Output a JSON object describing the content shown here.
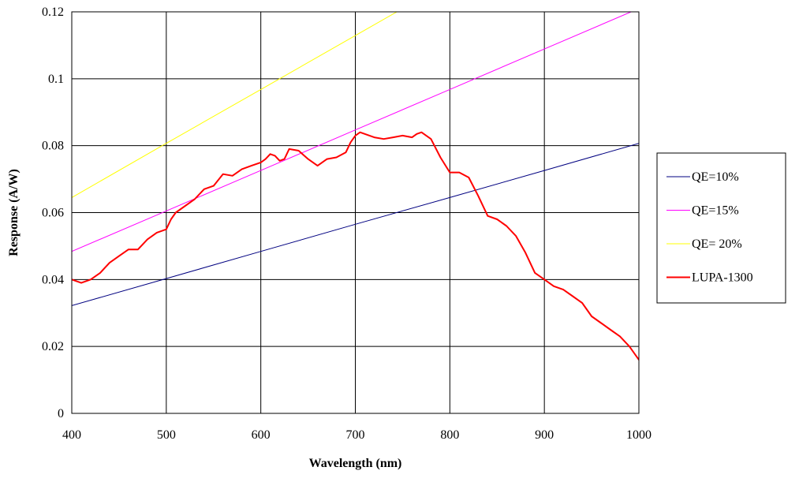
{
  "chart_data": {
    "type": "line",
    "title": "",
    "xlabel": "Wavelength (nm)",
    "ylabel": "Response (A/W)",
    "xlim": [
      400,
      1000
    ],
    "ylim": [
      0,
      0.12
    ],
    "x_ticks": [
      "400",
      "500",
      "600",
      "700",
      "800",
      "900",
      "1000"
    ],
    "y_ticks": [
      "0",
      "0.02",
      "0.04",
      "0.06",
      "0.08",
      "0.1",
      "0.12"
    ],
    "grid": true,
    "legend_position": "right",
    "series": [
      {
        "name": "QE=10%",
        "color": "#000080",
        "points": [
          [
            400,
            0.0322
          ],
          [
            500,
            0.0403
          ],
          [
            600,
            0.0484
          ],
          [
            700,
            0.0565
          ],
          [
            800,
            0.0645
          ],
          [
            900,
            0.0726
          ],
          [
            1000,
            0.0807
          ]
        ]
      },
      {
        "name": "QE=15%",
        "color": "#ff00ff",
        "points": [
          [
            400,
            0.0484
          ],
          [
            500,
            0.0605
          ],
          [
            600,
            0.0726
          ],
          [
            700,
            0.0847
          ],
          [
            800,
            0.0968
          ],
          [
            900,
            0.1089
          ],
          [
            1000,
            0.121
          ]
        ]
      },
      {
        "name": "QE= 20%",
        "color": "#ffff00",
        "points": [
          [
            400,
            0.0645
          ],
          [
            500,
            0.0807
          ],
          [
            600,
            0.0968
          ],
          [
            700,
            0.1129
          ],
          [
            744,
            0.12
          ]
        ]
      },
      {
        "name": "LUPA-1300",
        "color": "#ff0000",
        "points": [
          [
            400,
            0.04
          ],
          [
            410,
            0.039
          ],
          [
            420,
            0.04
          ],
          [
            430,
            0.042
          ],
          [
            440,
            0.045
          ],
          [
            450,
            0.047
          ],
          [
            460,
            0.049
          ],
          [
            470,
            0.049
          ],
          [
            480,
            0.052
          ],
          [
            490,
            0.054
          ],
          [
            500,
            0.055
          ],
          [
            505,
            0.058
          ],
          [
            510,
            0.06
          ],
          [
            520,
            0.062
          ],
          [
            530,
            0.064
          ],
          [
            540,
            0.067
          ],
          [
            550,
            0.068
          ],
          [
            560,
            0.0715
          ],
          [
            570,
            0.071
          ],
          [
            580,
            0.073
          ],
          [
            590,
            0.074
          ],
          [
            600,
            0.075
          ],
          [
            605,
            0.076
          ],
          [
            610,
            0.0775
          ],
          [
            615,
            0.077
          ],
          [
            620,
            0.0755
          ],
          [
            625,
            0.076
          ],
          [
            630,
            0.079
          ],
          [
            640,
            0.0785
          ],
          [
            650,
            0.076
          ],
          [
            660,
            0.074
          ],
          [
            670,
            0.076
          ],
          [
            680,
            0.0765
          ],
          [
            690,
            0.078
          ],
          [
            695,
            0.081
          ],
          [
            700,
            0.083
          ],
          [
            705,
            0.084
          ],
          [
            720,
            0.0825
          ],
          [
            730,
            0.082
          ],
          [
            740,
            0.0825
          ],
          [
            750,
            0.083
          ],
          [
            760,
            0.0825
          ],
          [
            765,
            0.0835
          ],
          [
            770,
            0.084
          ],
          [
            780,
            0.082
          ],
          [
            790,
            0.0765
          ],
          [
            800,
            0.072
          ],
          [
            810,
            0.072
          ],
          [
            820,
            0.0705
          ],
          [
            830,
            0.065
          ],
          [
            840,
            0.059
          ],
          [
            850,
            0.058
          ],
          [
            860,
            0.056
          ],
          [
            870,
            0.053
          ],
          [
            880,
            0.048
          ],
          [
            890,
            0.042
          ],
          [
            900,
            0.04
          ],
          [
            910,
            0.038
          ],
          [
            920,
            0.037
          ],
          [
            930,
            0.035
          ],
          [
            940,
            0.033
          ],
          [
            950,
            0.029
          ],
          [
            960,
            0.027
          ],
          [
            970,
            0.025
          ],
          [
            980,
            0.023
          ],
          [
            990,
            0.02
          ],
          [
            1000,
            0.016
          ]
        ]
      }
    ]
  }
}
